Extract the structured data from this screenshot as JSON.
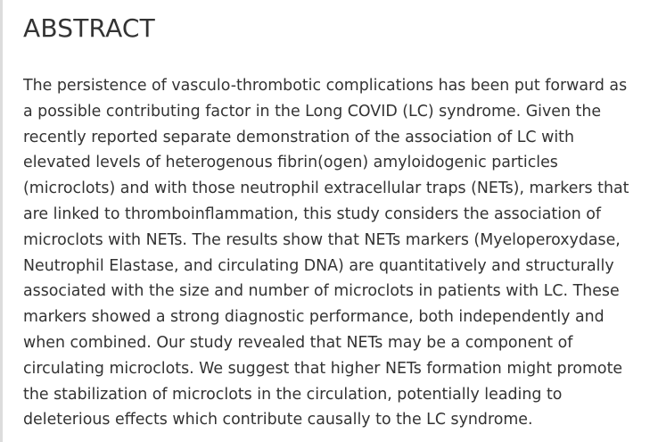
{
  "heading": "ABSTRACT",
  "abstract_lines": [
    "The persistence of vasculo-thrombotic complications has been put forward as",
    "a possible contributing factor in the Long COVID (LC) syndrome. Given the",
    "recently reported separate demonstration of the association of LC with",
    "elevated levels of heterogenous fibrin(ogen) amyloidogenic particles",
    "(microclots) and with those neutrophil extracellular traps (NETs), markers that",
    "are linked to thromboinflammation, this study considers the association of",
    "microclots with NETs. The results show that NETs markers (Myeloperoxydase,",
    "Neutrophil Elastase, and circulating DNA) are quantitatively and structurally",
    "associated with the size and number of microclots in patients with LC. These",
    "markers showed a strong diagnostic performance, both independently and",
    "when combined. Our study revealed that NETs may be a component of",
    "circulating microclots. We suggest that higher NETs formation might promote",
    "the stabilization of microclots in the circulation, potentially leading to",
    "deleterious effects which contribute causally to the LC syndrome."
  ]
}
